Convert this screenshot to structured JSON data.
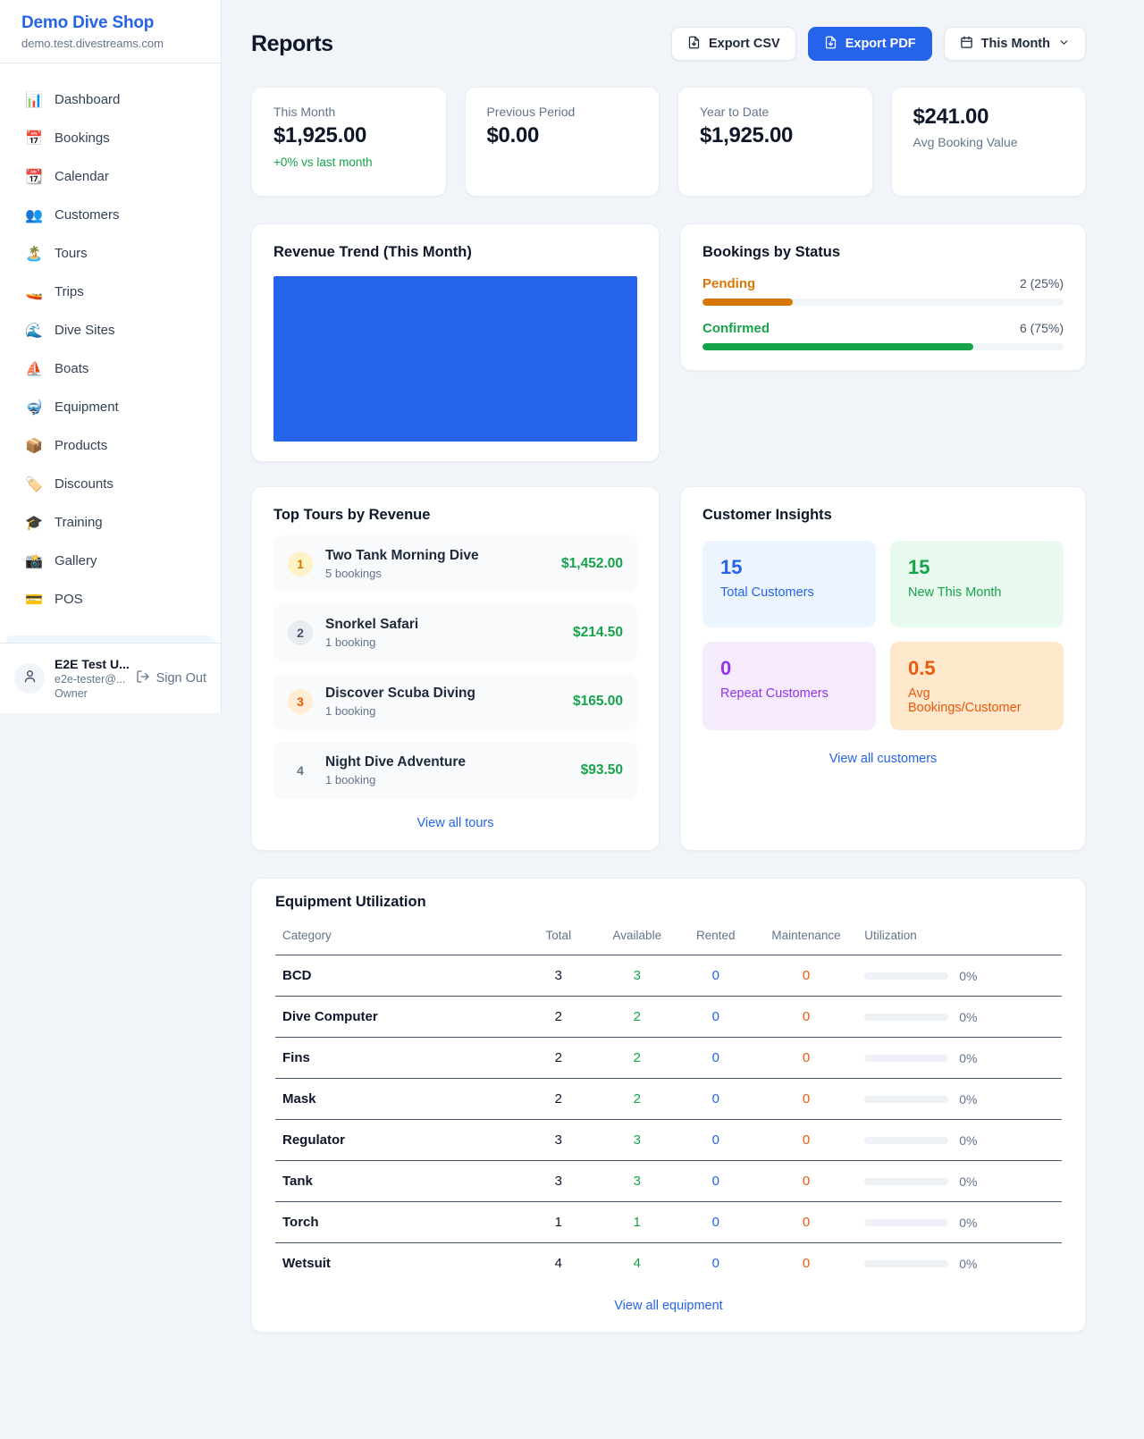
{
  "sidebar": {
    "shop_name": "Demo Dive Shop",
    "domain": "demo.test.divestreams.com",
    "items": [
      {
        "icon": "📊",
        "label": "Dashboard"
      },
      {
        "icon": "📅",
        "label": "Bookings"
      },
      {
        "icon": "📆",
        "label": "Calendar"
      },
      {
        "icon": "👥",
        "label": "Customers"
      },
      {
        "icon": "🏝️",
        "label": "Tours"
      },
      {
        "icon": "🚤",
        "label": "Trips"
      },
      {
        "icon": "🌊",
        "label": "Dive Sites"
      },
      {
        "icon": "⛵",
        "label": "Boats"
      },
      {
        "icon": "🤿",
        "label": "Equipment"
      },
      {
        "icon": "📦",
        "label": "Products"
      },
      {
        "icon": "🏷️",
        "label": "Discounts"
      },
      {
        "icon": "🎓",
        "label": "Training"
      },
      {
        "icon": "📸",
        "label": "Gallery"
      },
      {
        "icon": "💳",
        "label": "POS"
      }
    ],
    "user": {
      "name": "E2E Test U...",
      "email": "e2e-tester@...",
      "role": "Owner",
      "sign_out": "Sign Out"
    }
  },
  "header": {
    "title": "Reports",
    "export_csv": "Export CSV",
    "export_pdf": "Export PDF",
    "period": "This Month"
  },
  "stats": [
    {
      "label": "This Month",
      "value": "$1,925.00",
      "change": "+0% vs last month"
    },
    {
      "label": "Previous Period",
      "value": "$0.00"
    },
    {
      "label": "Year to Date",
      "value": "$1,925.00"
    },
    {
      "label": "Avg Booking Value",
      "value": "$241.00"
    }
  ],
  "revenue_trend": {
    "title": "Revenue Trend (This Month)",
    "chart_color": "#2563eb"
  },
  "bookings_by_status": {
    "title": "Bookings by Status",
    "rows": [
      {
        "label": "Pending",
        "value_label": "2 (25%)",
        "percent": 25,
        "color": "#d97706"
      },
      {
        "label": "Confirmed",
        "value_label": "6 (75%)",
        "percent": 75,
        "color": "#16a34a"
      }
    ]
  },
  "top_tours": {
    "title": "Top Tours by Revenue",
    "items": [
      {
        "rank": 1,
        "name": "Two Tank Morning Dive",
        "bookings": "5 bookings",
        "revenue": "$1,452.00"
      },
      {
        "rank": 2,
        "name": "Snorkel Safari",
        "bookings": "1 booking",
        "revenue": "$214.50"
      },
      {
        "rank": 3,
        "name": "Discover Scuba Diving",
        "bookings": "1 booking",
        "revenue": "$165.00"
      },
      {
        "rank": 4,
        "name": "Night Dive Adventure",
        "bookings": "1 booking",
        "revenue": "$93.50"
      }
    ],
    "view_all": "View all tours"
  },
  "customer_insights": {
    "title": "Customer Insights",
    "tiles": [
      {
        "value": "15",
        "label": "Total Customers"
      },
      {
        "value": "15",
        "label": "New This Month"
      },
      {
        "value": "0",
        "label": "Repeat Customers"
      },
      {
        "value": "0.5",
        "label": "Avg Bookings/Customer"
      }
    ],
    "view_all": "View all customers"
  },
  "equipment": {
    "title": "Equipment Utilization",
    "columns": [
      "Category",
      "Total",
      "Available",
      "Rented",
      "Maintenance",
      "Utilization"
    ],
    "rows": [
      {
        "category": "BCD",
        "total": 3,
        "available": 3,
        "rented": 0,
        "maintenance": 0,
        "utilization_pct": 0,
        "utilization_label": "0%"
      },
      {
        "category": "Dive Computer",
        "total": 2,
        "available": 2,
        "rented": 0,
        "maintenance": 0,
        "utilization_pct": 0,
        "utilization_label": "0%"
      },
      {
        "category": "Fins",
        "total": 2,
        "available": 2,
        "rented": 0,
        "maintenance": 0,
        "utilization_pct": 0,
        "utilization_label": "0%"
      },
      {
        "category": "Mask",
        "total": 2,
        "available": 2,
        "rented": 0,
        "maintenance": 0,
        "utilization_pct": 0,
        "utilization_label": "0%"
      },
      {
        "category": "Regulator",
        "total": 3,
        "available": 3,
        "rented": 0,
        "maintenance": 0,
        "utilization_pct": 0,
        "utilization_label": "0%"
      },
      {
        "category": "Tank",
        "total": 3,
        "available": 3,
        "rented": 0,
        "maintenance": 0,
        "utilization_pct": 0,
        "utilization_label": "0%"
      },
      {
        "category": "Torch",
        "total": 1,
        "available": 1,
        "rented": 0,
        "maintenance": 0,
        "utilization_pct": 0,
        "utilization_label": "0%"
      },
      {
        "category": "Wetsuit",
        "total": 4,
        "available": 4,
        "rented": 0,
        "maintenance": 0,
        "utilization_pct": 0,
        "utilization_label": "0%"
      }
    ],
    "view_all": "View all equipment"
  },
  "colors": {
    "primary": "#2563eb",
    "green": "#16a34a",
    "amber": "#d97706",
    "orange": "#ea580c",
    "purple": "#9333ea"
  }
}
